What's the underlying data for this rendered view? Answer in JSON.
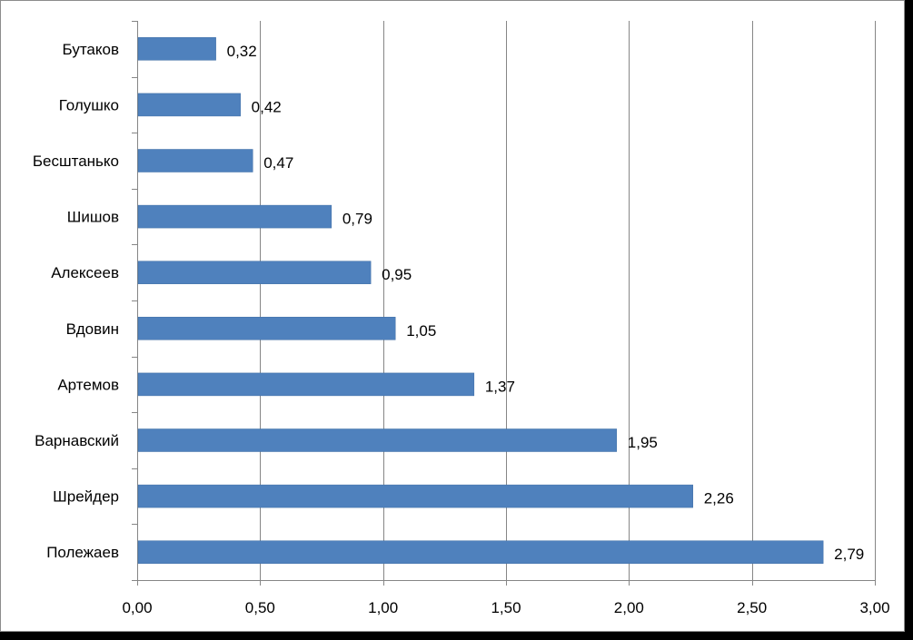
{
  "chart_data": {
    "type": "bar",
    "orientation": "horizontal",
    "categories": [
      "Бутаков",
      "Голушко",
      "Бесштанько",
      "Шишов",
      "Алексеев",
      "Вдовин",
      "Артемов",
      "Варнавский",
      "Шрейдер",
      "Полежаев"
    ],
    "values": [
      0.32,
      0.42,
      0.47,
      0.79,
      0.95,
      1.05,
      1.37,
      1.95,
      2.26,
      2.79
    ],
    "data_labels": [
      "0,32",
      "0,42",
      "0,47",
      "0,79",
      "0,95",
      "1,05",
      "1,37",
      "1,95",
      "2,26",
      "2,79"
    ],
    "x_ticks": [
      0,
      0.5,
      1,
      1.5,
      2,
      2.5,
      3
    ],
    "x_tick_labels": [
      "0,00",
      "0,50",
      "1,00",
      "1,50",
      "2,00",
      "2,50",
      "3,00"
    ],
    "xlim": [
      0,
      3
    ],
    "title": "",
    "xlabel": "",
    "ylabel": "",
    "grid": "vertical",
    "legend": "none",
    "colors": {
      "bar": "#4f81bd",
      "bar_border": "#3d6ca4",
      "grid": "#868686",
      "axis": "#868686"
    }
  }
}
